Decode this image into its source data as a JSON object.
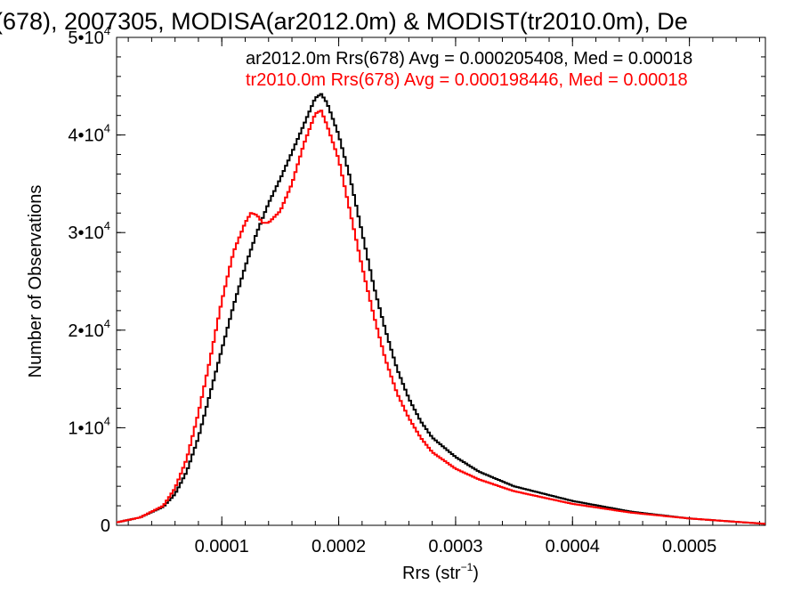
{
  "chart_data": {
    "type": "line",
    "title": "(678), 2007305, MODISA(ar2012.0m) & MODIST(tr2010.0m), De",
    "xlabel_main": "Rrs (str",
    "xlabel_sup": "−1",
    "xlabel_close": ")",
    "ylabel": "Number of Observations",
    "xlim": [
      1e-05,
      0.000565
    ],
    "ylim": [
      0,
      50000
    ],
    "x_ticks": [
      {
        "value": 0.0001,
        "label": "0.0001"
      },
      {
        "value": 0.0002,
        "label": "0.0002"
      },
      {
        "value": 0.0003,
        "label": "0.0003"
      },
      {
        "value": 0.0004,
        "label": "0.0004"
      },
      {
        "value": 0.0005,
        "label": "0.0005"
      }
    ],
    "y_ticks": [
      {
        "value": 0,
        "base": "0",
        "exp": ""
      },
      {
        "value": 10000,
        "base": "1•10",
        "exp": "4"
      },
      {
        "value": 20000,
        "base": "2•10",
        "exp": "4"
      },
      {
        "value": 30000,
        "base": "3•10",
        "exp": "4"
      },
      {
        "value": 40000,
        "base": "4•10",
        "exp": "4"
      },
      {
        "value": 50000,
        "base": "5•10",
        "exp": "4"
      }
    ],
    "legend": [
      {
        "text": "ar2012.0m Rrs(678) Avg = 0.000205408, Med = 0.00018",
        "color": "#000000"
      },
      {
        "text": "tr2010.0m Rrs(678) Avg = 0.000198446, Med = 0.00018",
        "color": "#ff0000"
      }
    ],
    "series": [
      {
        "color": "#000000",
        "points": [
          [
            1e-05,
            300
          ],
          [
            3e-05,
            800
          ],
          [
            5e-05,
            1900
          ],
          [
            6e-05,
            3200
          ],
          [
            7e-05,
            5500
          ],
          [
            8e-05,
            9000
          ],
          [
            9e-05,
            13500
          ],
          [
            0.0001,
            18000
          ],
          [
            0.00011,
            22500
          ],
          [
            0.00012,
            26500
          ],
          [
            0.00013,
            30000
          ],
          [
            0.00014,
            33000
          ],
          [
            0.00015,
            35500
          ],
          [
            0.00016,
            38200
          ],
          [
            0.00017,
            41000
          ],
          [
            0.00018,
            43800
          ],
          [
            0.000185,
            44200
          ],
          [
            0.00019,
            43300
          ],
          [
            0.0002,
            40000
          ],
          [
            0.00021,
            35500
          ],
          [
            0.00022,
            30000
          ],
          [
            0.00023,
            24500
          ],
          [
            0.00024,
            20000
          ],
          [
            0.00025,
            16000
          ],
          [
            0.00026,
            13000
          ],
          [
            0.00027,
            10700
          ],
          [
            0.00028,
            9000
          ],
          [
            0.0003,
            7000
          ],
          [
            0.00032,
            5500
          ],
          [
            0.00035,
            4000
          ],
          [
            0.0004,
            2500
          ],
          [
            0.00045,
            1400
          ],
          [
            0.0005,
            700
          ],
          [
            0.000565,
            150
          ]
        ]
      },
      {
        "color": "#ff0000",
        "points": [
          [
            1e-05,
            300
          ],
          [
            3e-05,
            800
          ],
          [
            5e-05,
            2000
          ],
          [
            6e-05,
            3800
          ],
          [
            7e-05,
            6800
          ],
          [
            8e-05,
            11500
          ],
          [
            9e-05,
            17000
          ],
          [
            0.0001,
            23000
          ],
          [
            0.00011,
            28000
          ],
          [
            0.00012,
            31000
          ],
          [
            0.000125,
            32000
          ],
          [
            0.00013,
            31800
          ],
          [
            0.000135,
            31000
          ],
          [
            0.00014,
            31000
          ],
          [
            0.00015,
            32200
          ],
          [
            0.00016,
            35000
          ],
          [
            0.00017,
            39000
          ],
          [
            0.00018,
            42200
          ],
          [
            0.000185,
            42500
          ],
          [
            0.00019,
            41000
          ],
          [
            0.0002,
            37500
          ],
          [
            0.00021,
            32000
          ],
          [
            0.00022,
            26500
          ],
          [
            0.00023,
            21500
          ],
          [
            0.00024,
            17000
          ],
          [
            0.00025,
            13500
          ],
          [
            0.00026,
            11000
          ],
          [
            0.00027,
            9000
          ],
          [
            0.00028,
            7500
          ],
          [
            0.0003,
            5800
          ],
          [
            0.00032,
            4700
          ],
          [
            0.00035,
            3500
          ],
          [
            0.0004,
            2200
          ],
          [
            0.00045,
            1300
          ],
          [
            0.0005,
            700
          ],
          [
            0.000565,
            150
          ]
        ]
      }
    ]
  }
}
